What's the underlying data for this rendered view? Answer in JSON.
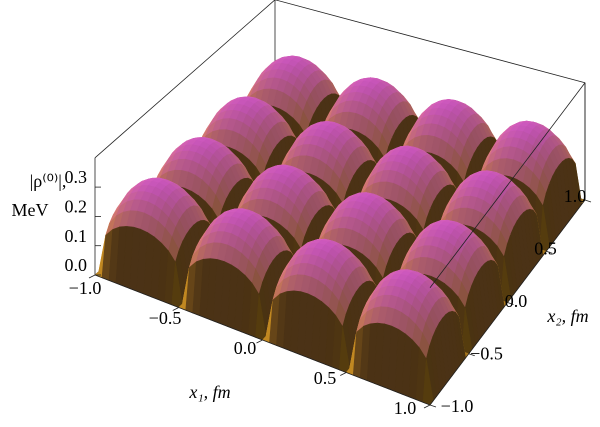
{
  "chart_data": {
    "type": "surface",
    "xlabel": "x₁, fm",
    "ylabel": "x₂, fm",
    "zlabel": [
      "|ρ⁽⁰⁾|,",
      "MeV"
    ],
    "xlim": [
      -1,
      1
    ],
    "ylim": [
      -1,
      1
    ],
    "zlim": [
      0,
      0.4
    ],
    "xticks": [
      {
        "value": -1,
        "label": "−1.0"
      },
      {
        "value": -0.5,
        "label": "−0.5"
      },
      {
        "value": 0,
        "label": "0.0"
      },
      0.5,
      {
        "value": 1,
        "label": "1.0"
      }
    ],
    "yticks": [
      {
        "value": -1,
        "label": "−1.0"
      },
      {
        "value": -0.5,
        "label": "−0.5"
      },
      {
        "value": 0,
        "label": "0.0"
      },
      0.5,
      {
        "value": 1,
        "label": "1.0"
      }
    ],
    "zticks": [
      {
        "value": 0,
        "label": "0.0"
      },
      0.1,
      0.2,
      0.3
    ]
  }
}
